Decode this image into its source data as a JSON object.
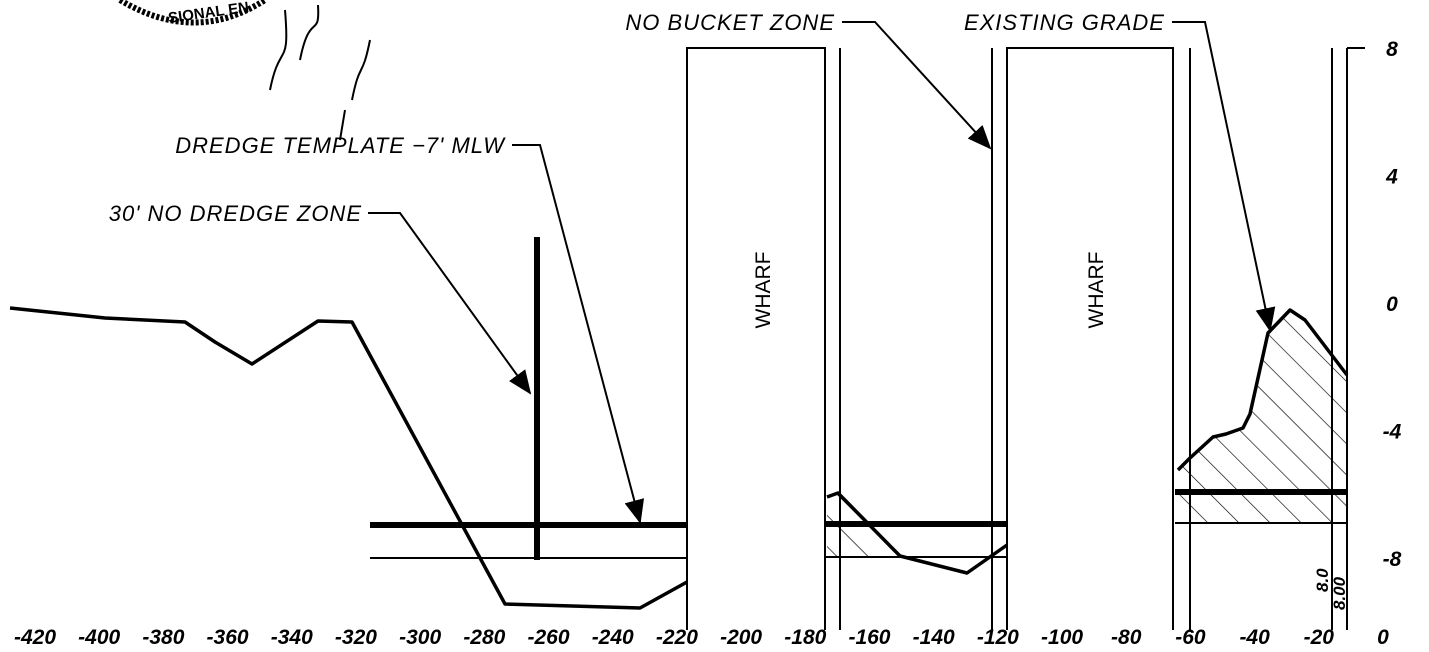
{
  "stamp": "SIONAL EN",
  "labels": {
    "no_bucket_zone": "NO BUCKET ZONE",
    "existing_grade": "EXISTING GRADE",
    "dredge_template": "DREDGE TEMPLATE −7' MLW",
    "no_dredge_zone": "30' NO DREDGE ZONE"
  },
  "wharfs": [
    "WHARF",
    "WHARF"
  ],
  "x_axis": {
    "ticks": [
      -420,
      -400,
      -380,
      -360,
      -340,
      -320,
      -300,
      -280,
      -260,
      -240,
      -220,
      -200,
      -180,
      -160,
      -140,
      -120,
      -100,
      -80,
      -60,
      -40,
      -20,
      0
    ]
  },
  "y_axis": {
    "ticks": [
      8,
      4,
      0,
      -4,
      -8
    ]
  },
  "elevation_notes": [
    "8.0",
    "8.00"
  ]
}
